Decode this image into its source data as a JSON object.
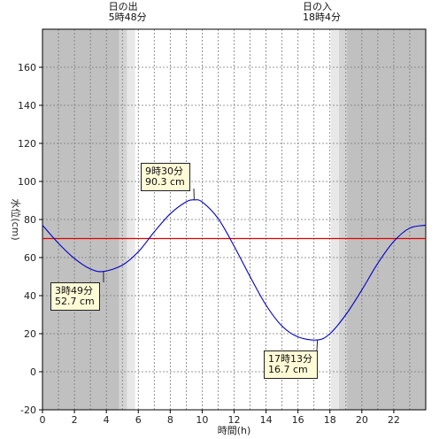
{
  "chart_data": {
    "type": "line",
    "xlabel": "時間(h)",
    "ylabel": "水位(cm)",
    "xlim": [
      0,
      24
    ],
    "ylim": [
      -20,
      180
    ],
    "x_ticks": [
      0,
      2,
      4,
      6,
      8,
      10,
      12,
      14,
      16,
      18,
      20,
      22
    ],
    "y_ticks": [
      -20,
      0,
      20,
      40,
      60,
      80,
      100,
      120,
      140,
      160
    ],
    "grid": true,
    "reference_line": {
      "y": 70,
      "color": "#e00000"
    },
    "sunrise": {
      "label": "日の出",
      "time": "5時48分",
      "hour": 5.8
    },
    "sunset": {
      "label": "日の入",
      "time": "18時4分",
      "hour": 18.07
    },
    "series": [
      {
        "color": "#0000cc",
        "x": [
          0,
          1,
          2,
          3,
          3.82,
          5,
          6,
          7,
          8,
          9,
          9.5,
          10,
          11,
          12,
          13,
          14,
          15,
          16,
          17.22,
          18,
          19,
          20,
          21,
          22,
          23,
          24
        ],
        "y": [
          77,
          67.5,
          59.5,
          54,
          52.7,
          56,
          63,
          73.5,
          83,
          89.3,
          90.3,
          89.2,
          80.5,
          66,
          50,
          35,
          24,
          18.3,
          16.7,
          20,
          30,
          43,
          57,
          68.5,
          75.5,
          77
        ]
      }
    ],
    "annotations": [
      {
        "time": "3時49分",
        "value": "52.7 cm"
      },
      {
        "time": "9時30分",
        "value": "90.3 cm"
      },
      {
        "time": "17時13分",
        "value": "16.7 cm"
      }
    ]
  }
}
